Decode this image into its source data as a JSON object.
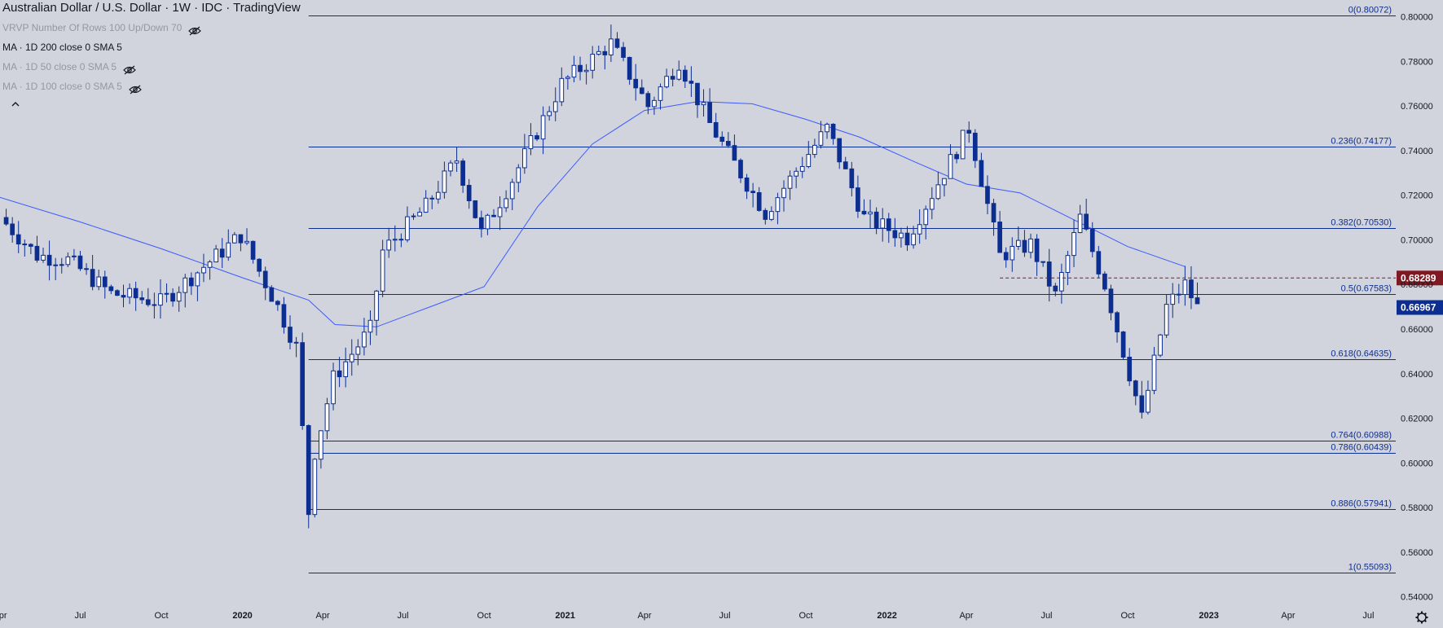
{
  "header": {
    "title": "Australian Dollar / U.S. Dollar · 1W · IDC · TradingView",
    "indicators": [
      {
        "label": "VRVP Number Of Rows 100 Up/Down 70",
        "visible": false,
        "icon": "eye-off-icon"
      },
      {
        "label": "MA · 1D 200 close 0 SMA 5",
        "visible": true,
        "icon": ""
      },
      {
        "label": "MA · 1D 50 close 0 SMA 5",
        "visible": false,
        "icon": "eye-off-icon"
      },
      {
        "label": "MA · 1D 100 close 0 SMA 5",
        "visible": false,
        "icon": "eye-off-icon"
      }
    ],
    "collapse_icon": "chevron-up-icon"
  },
  "colors": {
    "background": "#d1d4dc",
    "candle_up": "#ffffff",
    "candle_down": "#0d2e91",
    "ma_line": "#3d5afe",
    "fib_line": "#0d2e91",
    "tag_red": "#801922",
    "tag_blue": "#0d2e91"
  },
  "chart_data": {
    "type": "candlestick",
    "title": "Australian Dollar / U.S. Dollar · 1W · IDC · TradingView",
    "x_axis": {
      "range": [
        "2019-04-01",
        "2023-08-01"
      ],
      "ticks": [
        {
          "label": "Apr",
          "date": "2019-04-01"
        },
        {
          "label": "Jul",
          "date": "2019-07-01"
        },
        {
          "label": "Oct",
          "date": "2019-10-01"
        },
        {
          "label": "2020",
          "date": "2020-01-01",
          "bold": true
        },
        {
          "label": "Apr",
          "date": "2020-04-01"
        },
        {
          "label": "Jul",
          "date": "2020-07-01"
        },
        {
          "label": "Oct",
          "date": "2020-10-01"
        },
        {
          "label": "2021",
          "date": "2021-01-01",
          "bold": true
        },
        {
          "label": "Apr",
          "date": "2021-04-01"
        },
        {
          "label": "Jul",
          "date": "2021-07-01"
        },
        {
          "label": "Oct",
          "date": "2021-10-01"
        },
        {
          "label": "2022",
          "date": "2022-01-01",
          "bold": true
        },
        {
          "label": "Apr",
          "date": "2022-04-01"
        },
        {
          "label": "Jul",
          "date": "2022-07-01"
        },
        {
          "label": "Oct",
          "date": "2022-10-01"
        },
        {
          "label": "2023",
          "date": "2023-01-01",
          "bold": true
        },
        {
          "label": "Apr",
          "date": "2023-04-01"
        },
        {
          "label": "Jul",
          "date": "2023-07-01"
        }
      ]
    },
    "y_axis": {
      "ylim": [
        0.5355,
        0.8075
      ],
      "ticks": [
        "0.80000",
        "0.78000",
        "0.76000",
        "0.74000",
        "0.72000",
        "0.70000",
        "0.68000",
        "0.66000",
        "0.64000",
        "0.62000",
        "0.60000",
        "0.58000",
        "0.56000",
        "0.54000"
      ]
    },
    "fib_levels": [
      {
        "label": "0(0.80072)",
        "value": 0.80072
      },
      {
        "label": "0.236(0.74177)",
        "value": 0.74177
      },
      {
        "label": "0.382(0.70530)",
        "value": 0.7053
      },
      {
        "label": "0.5(0.67583)",
        "value": 0.67583
      },
      {
        "label": "0.618(0.64635)",
        "value": 0.64635
      },
      {
        "label": "0.764(0.60988)",
        "value": 0.60988
      },
      {
        "label": "0.786(0.60439)",
        "value": 0.60439
      },
      {
        "label": "0.886(0.57941)",
        "value": 0.57941
      },
      {
        "label": "1(0.55093)",
        "value": 0.55093
      }
    ],
    "price_tags": [
      {
        "label": "0.68289",
        "value": 0.68289,
        "color": "#801922",
        "dashed_line_from": "2022-05-09"
      },
      {
        "label": "0.66967",
        "value": 0.66967,
        "color": "#0d2e91"
      }
    ],
    "ohlc_anchors": [
      {
        "date": "2019-04-01",
        "close": 0.71
      },
      {
        "date": "2019-05-13",
        "close": 0.693
      },
      {
        "date": "2019-06-17",
        "close": 0.691
      },
      {
        "date": "2019-08-05",
        "close": 0.676
      },
      {
        "date": "2019-10-01",
        "close": 0.672
      },
      {
        "date": "2019-12-30",
        "close": 0.702
      },
      {
        "date": "2020-02-10",
        "close": 0.67
      },
      {
        "date": "2020-03-02",
        "close": 0.652
      },
      {
        "date": "2020-03-16",
        "close": 0.578
      },
      {
        "date": "2020-03-23",
        "close": 0.605
      },
      {
        "date": "2020-04-13",
        "close": 0.638
      },
      {
        "date": "2020-05-25",
        "close": 0.66
      },
      {
        "date": "2020-06-08",
        "close": 0.695
      },
      {
        "date": "2020-07-27",
        "close": 0.715
      },
      {
        "date": "2020-08-31",
        "close": 0.736
      },
      {
        "date": "2020-09-28",
        "close": 0.703
      },
      {
        "date": "2020-11-02",
        "close": 0.727
      },
      {
        "date": "2020-12-28",
        "close": 0.77
      },
      {
        "date": "2021-02-22",
        "close": 0.788
      },
      {
        "date": "2021-04-05",
        "close": 0.76
      },
      {
        "date": "2021-05-10",
        "close": 0.78
      },
      {
        "date": "2021-06-14",
        "close": 0.752
      },
      {
        "date": "2021-08-16",
        "close": 0.712
      },
      {
        "date": "2021-10-25",
        "close": 0.75
      },
      {
        "date": "2021-12-06",
        "close": 0.71
      },
      {
        "date": "2022-01-24",
        "close": 0.701
      },
      {
        "date": "2022-04-04",
        "close": 0.75
      },
      {
        "date": "2022-05-09",
        "close": 0.693
      },
      {
        "date": "2022-06-13",
        "close": 0.698
      },
      {
        "date": "2022-07-11",
        "close": 0.675
      },
      {
        "date": "2022-08-08",
        "close": 0.71
      },
      {
        "date": "2022-09-05",
        "close": 0.68
      },
      {
        "date": "2022-10-10",
        "close": 0.63
      },
      {
        "date": "2022-10-17",
        "close": 0.62
      },
      {
        "date": "2022-11-14",
        "close": 0.67
      },
      {
        "date": "2022-12-05",
        "close": 0.68
      },
      {
        "date": "2022-12-19",
        "close": 0.6697
      }
    ],
    "ma_series": {
      "name": "MA · 1D 200 close 0 SMA 5",
      "points": [
        [
          "2019-04-01",
          0.719
        ],
        [
          "2019-07-01",
          0.708
        ],
        [
          "2019-10-01",
          0.696
        ],
        [
          "2020-01-01",
          0.683
        ],
        [
          "2020-03-16",
          0.673
        ],
        [
          "2020-04-15",
          0.662
        ],
        [
          "2020-06-01",
          0.661
        ],
        [
          "2020-08-01",
          0.67
        ],
        [
          "2020-10-01",
          0.679
        ],
        [
          "2020-12-01",
          0.715
        ],
        [
          "2021-02-01",
          0.743
        ],
        [
          "2021-04-01",
          0.758
        ],
        [
          "2021-06-01",
          0.762
        ],
        [
          "2021-08-01",
          0.761
        ],
        [
          "2021-10-01",
          0.754
        ],
        [
          "2021-12-01",
          0.746
        ],
        [
          "2022-02-01",
          0.735
        ],
        [
          "2022-04-01",
          0.725
        ],
        [
          "2022-06-01",
          0.721
        ],
        [
          "2022-08-01",
          0.709
        ],
        [
          "2022-10-01",
          0.697
        ],
        [
          "2022-12-05",
          0.688
        ]
      ]
    }
  }
}
